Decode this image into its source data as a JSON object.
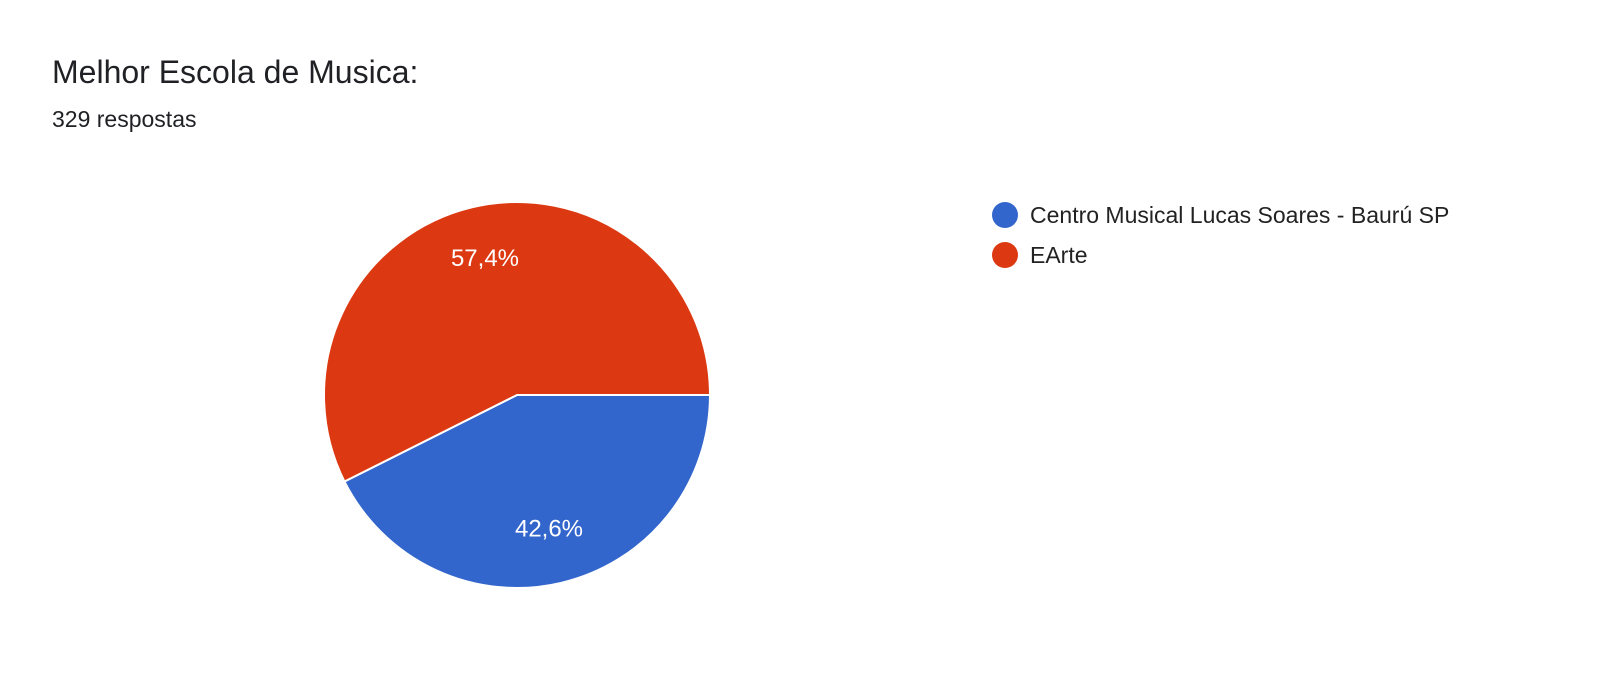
{
  "chart_data": {
    "type": "pie",
    "title": "Melhor Escola de Musica:",
    "subtitle": "329 respostas",
    "categories": [
      "Centro Musical Lucas Soares - Baurú SP",
      "EArte"
    ],
    "values": [
      42.6,
      57.4
    ],
    "value_labels": [
      "42,6%",
      "57,4%"
    ],
    "colors": [
      "#3366cc",
      "#dc3912"
    ],
    "legend": "right"
  }
}
